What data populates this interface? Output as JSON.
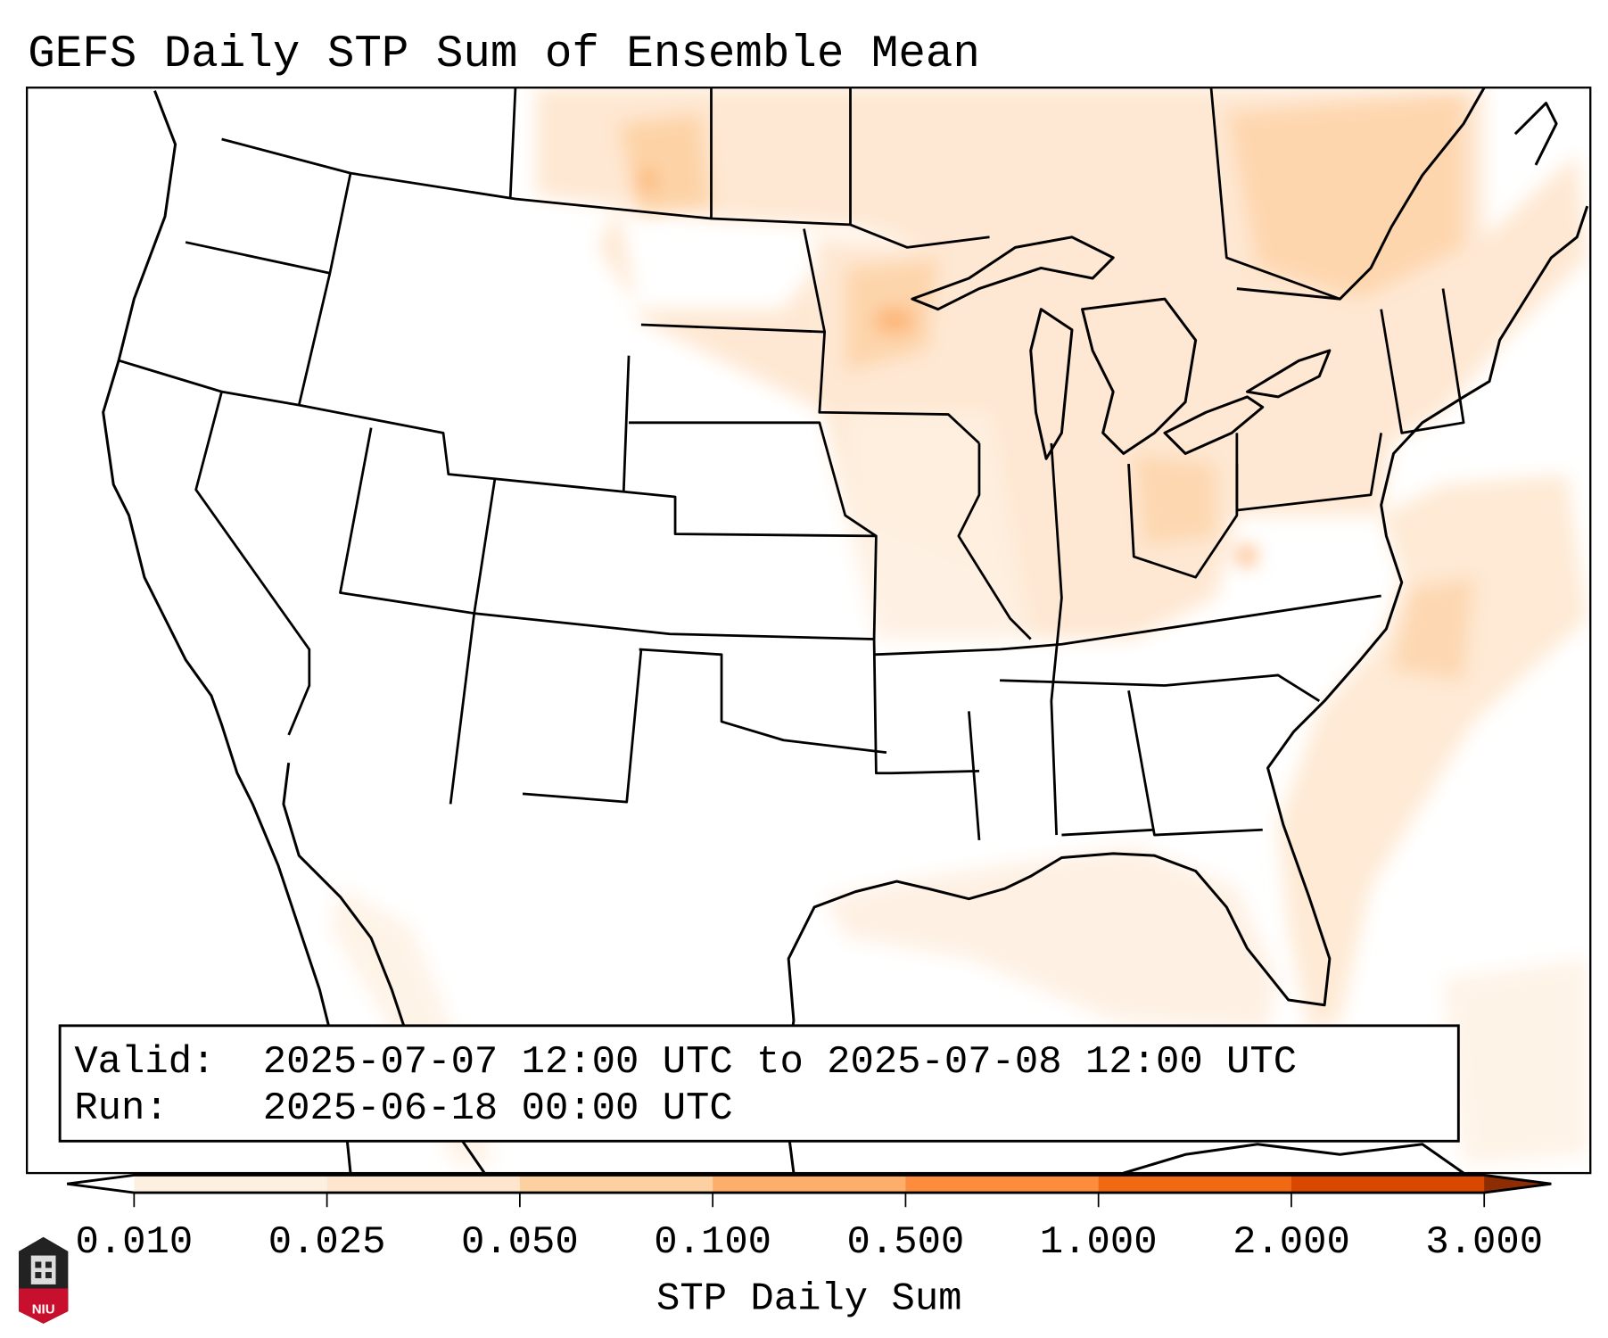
{
  "title": "GEFS Daily STP Sum of Ensemble Mean",
  "info_box": {
    "valid_label": "Valid:",
    "valid_value": "2025-07-07 12:00 UTC to 2025-07-08 12:00 UTC",
    "run_label": "Run:",
    "run_value": "2025-06-18 00:00 UTC"
  },
  "colorbar": {
    "label": "STP Daily Sum",
    "ticks": [
      "0.010",
      "0.025",
      "0.050",
      "0.100",
      "0.500",
      "1.000",
      "2.000",
      "3.000"
    ],
    "colors": [
      "#fef0e1",
      "#fee6ce",
      "#fdd0a2",
      "#fdae6b",
      "#fd8d3c",
      "#f16913",
      "#d94801"
    ],
    "under_color": "#ffffff",
    "over_color": "#8c2d04",
    "extend": "both"
  },
  "logo": {
    "text": "NIU"
  }
}
